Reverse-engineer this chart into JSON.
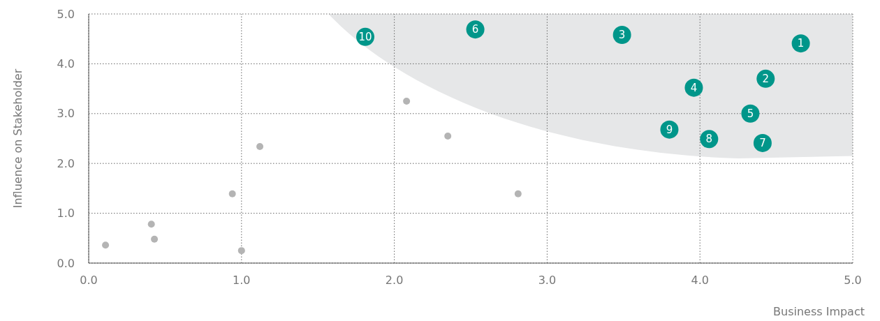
{
  "chart_data": {
    "type": "scatter",
    "xlabel": "Business Impact",
    "ylabel": "Influence on Stakeholder",
    "xlim": [
      0,
      5
    ],
    "ylim": [
      0,
      5
    ],
    "xticks": [
      {
        "value": 0,
        "label": "0.0"
      },
      {
        "value": 1,
        "label": "1.0"
      },
      {
        "value": 2,
        "label": "2.0"
      },
      {
        "value": 3,
        "label": "3.0"
      },
      {
        "value": 4,
        "label": "4.0"
      },
      {
        "value": 5,
        "label": "5.0"
      }
    ],
    "yticks": [
      {
        "value": 0,
        "label": "0.0"
      },
      {
        "value": 1,
        "label": "1.0"
      },
      {
        "value": 2,
        "label": "2.0"
      },
      {
        "value": 3,
        "label": "3.0"
      },
      {
        "value": 4,
        "label": "4.0"
      },
      {
        "value": 5,
        "label": "5.0"
      }
    ],
    "grid": true,
    "marker": "circle",
    "series": [
      {
        "color": "#b4b4b4",
        "x": [
          0.11,
          0.41,
          0.43,
          0.94,
          1.0,
          1.12,
          2.08,
          2.35,
          2.81
        ],
        "values": [
          0.36,
          0.78,
          0.48,
          1.39,
          0.25,
          2.34,
          3.25,
          2.55,
          1.39
        ]
      },
      {
        "color": "#00968a",
        "x": [
          4.66,
          4.43,
          3.49,
          3.96,
          4.33,
          2.53,
          4.41,
          4.06,
          3.8,
          1.81
        ],
        "values": [
          4.41,
          3.7,
          4.58,
          3.52,
          3.0,
          4.69,
          2.41,
          2.49,
          2.68,
          4.54
        ]
      }
    ],
    "annotations": [
      {
        "text": "1",
        "x": 4.66,
        "y": 4.41
      },
      {
        "text": "2",
        "x": 4.43,
        "y": 3.7
      },
      {
        "text": "3",
        "x": 3.49,
        "y": 4.58
      },
      {
        "text": "4",
        "x": 3.96,
        "y": 3.52
      },
      {
        "text": "5",
        "x": 4.33,
        "y": 3.0
      },
      {
        "text": "6",
        "x": 2.53,
        "y": 4.69
      },
      {
        "text": "7",
        "x": 4.41,
        "y": 2.41
      },
      {
        "text": "8",
        "x": 4.06,
        "y": 2.49
      },
      {
        "text": "9",
        "x": 3.8,
        "y": 2.68
      },
      {
        "text": "10",
        "x": 1.81,
        "y": 4.54
      }
    ]
  }
}
